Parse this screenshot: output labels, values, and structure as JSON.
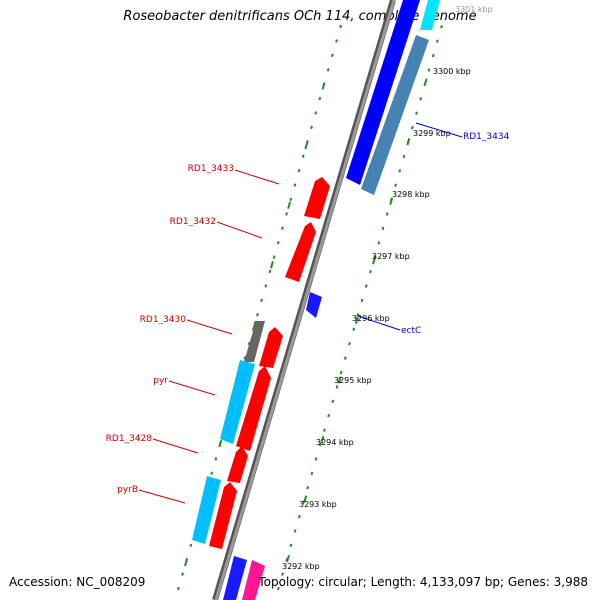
{
  "title": "Roseobacter denitrificans OCh 114, complete genome",
  "footer": {
    "accession": "Accession: NC_008209",
    "topology": "Topology: circular; Length: 4,133,097 bp; Genes: 3,988"
  },
  "colors": {
    "backbone": "#888888",
    "ticks": "#228b22",
    "forward_gene": "#0000ff",
    "reverse_gene": "#ff0000",
    "cds_steel": "#4682b4",
    "cyan_feature": "#00bfff",
    "gray_feature": "#666666",
    "magenta_feature": "#ff1493",
    "forward_label": "#0000cc",
    "reverse_label": "#cc0000"
  },
  "scale_labels": [
    "3301 kbp",
    "3300 kbp",
    "3299 kbp",
    "3298 kbp",
    "3297 kbp",
    "3296 kbp",
    "3295 kbp",
    "3294 kbp",
    "3293 kbp",
    "3292 kbp"
  ],
  "gene_labels": {
    "forward": [
      "RD1_3434",
      "ectC"
    ],
    "reverse": [
      "RD1_3433",
      "RD1_3432",
      "RD1_3430",
      "pyr",
      "RD1_3428",
      "pyrB"
    ]
  }
}
